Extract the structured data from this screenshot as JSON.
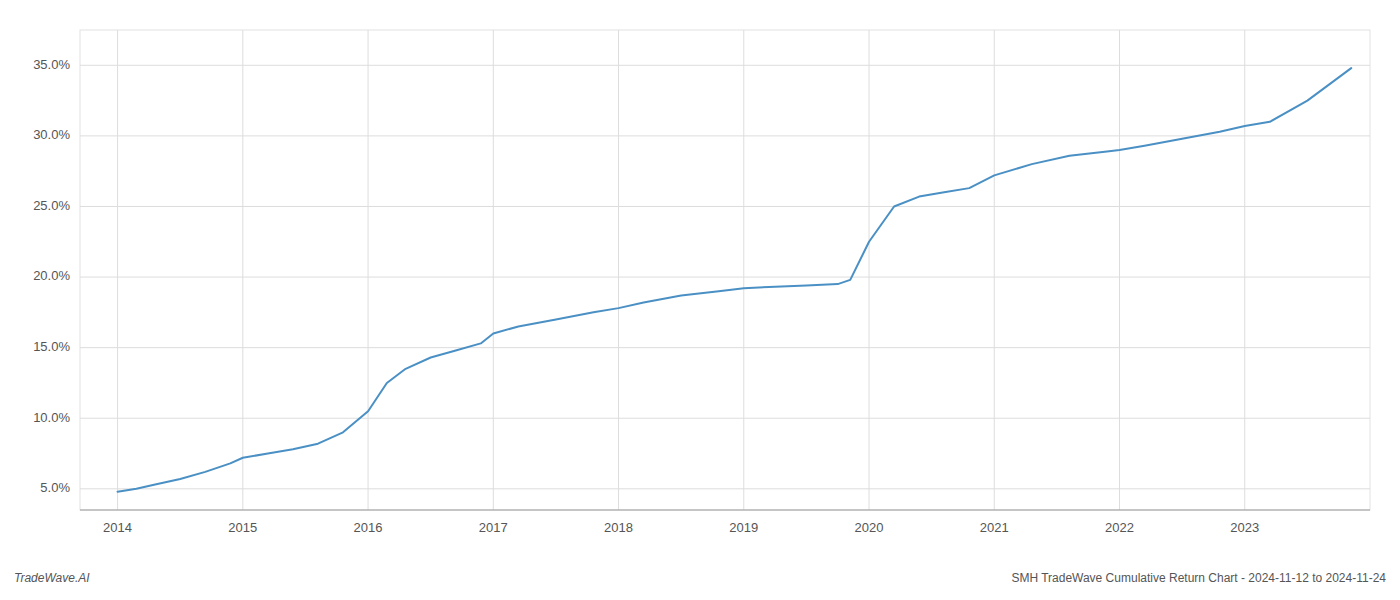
{
  "chart_data": {
    "type": "line",
    "title": "SMH TradeWave Cumulative Return Chart - 2024-11-12 to 2024-11-24",
    "annotations": [
      "TradeWave.AI"
    ],
    "color": "#4a90c4",
    "grid": true,
    "x": [
      2014.0,
      2014.15,
      2014.3,
      2014.5,
      2014.7,
      2014.9,
      2015.0,
      2015.2,
      2015.4,
      2015.6,
      2015.8,
      2016.0,
      2016.15,
      2016.3,
      2016.5,
      2016.7,
      2016.9,
      2017.0,
      2017.2,
      2017.5,
      2017.8,
      2018.0,
      2018.2,
      2018.5,
      2018.8,
      2019.0,
      2019.2,
      2019.5,
      2019.75,
      2019.85,
      2020.0,
      2020.2,
      2020.4,
      2020.6,
      2020.8,
      2021.0,
      2021.3,
      2021.6,
      2021.9,
      2022.0,
      2022.2,
      2022.5,
      2022.8,
      2023.0,
      2023.2,
      2023.5,
      2023.85
    ],
    "values": [
      4.8,
      5.0,
      5.3,
      5.7,
      6.2,
      6.8,
      7.2,
      7.5,
      7.8,
      8.2,
      9.0,
      10.5,
      12.5,
      13.5,
      14.3,
      14.8,
      15.3,
      16.0,
      16.5,
      17.0,
      17.5,
      17.8,
      18.2,
      18.7,
      19.0,
      19.2,
      19.3,
      19.4,
      19.5,
      19.8,
      22.5,
      25.0,
      25.7,
      26.0,
      26.3,
      27.2,
      28.0,
      28.6,
      28.9,
      29.0,
      29.3,
      29.8,
      30.3,
      30.7,
      31.0,
      32.5,
      34.8
    ],
    "xlim": [
      2013.7,
      2024.0
    ],
    "ylim": [
      3.5,
      37.5
    ],
    "xticks": [
      2014,
      2015,
      2016,
      2017,
      2018,
      2019,
      2020,
      2021,
      2022,
      2023
    ],
    "yticks": [
      {
        "value": 5.0,
        "label": "5.0%"
      },
      {
        "value": 10.0,
        "label": "10.0%"
      },
      {
        "value": 15.0,
        "label": "15.0%"
      },
      {
        "value": 20.0,
        "label": "20.0%"
      },
      {
        "value": 25.0,
        "label": "25.0%"
      },
      {
        "value": 30.0,
        "label": "30.0%"
      },
      {
        "value": 35.0,
        "label": "35.0%"
      }
    ]
  }
}
